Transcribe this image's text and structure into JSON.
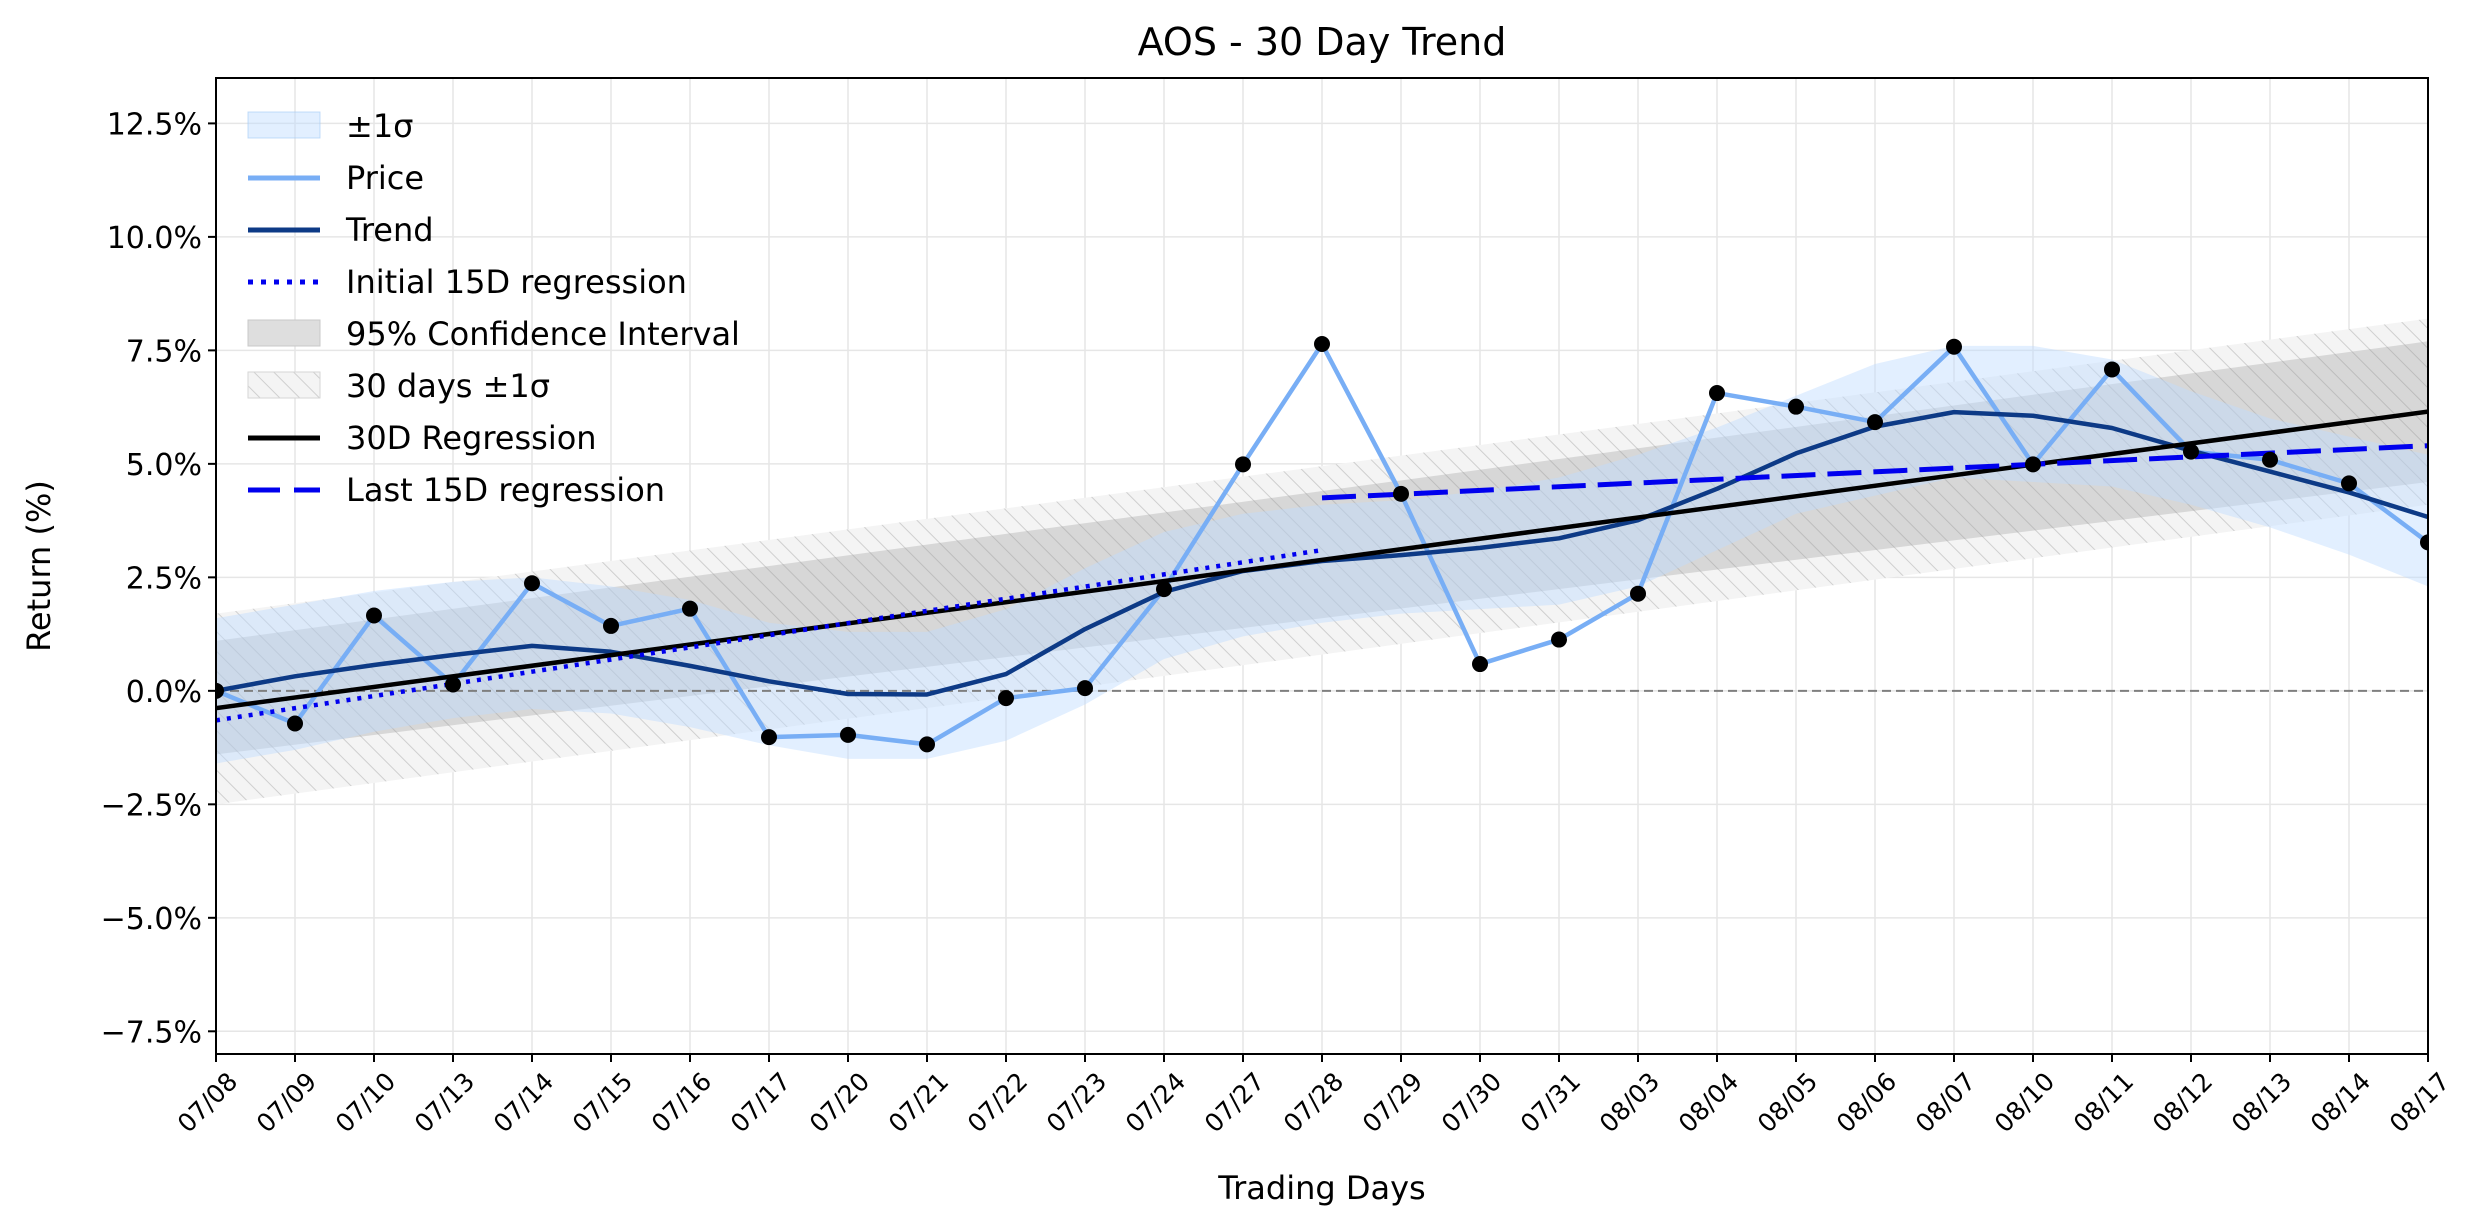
{
  "chart_data": {
    "type": "line",
    "title": "AOS - 30 Day Trend",
    "xlabel": "Trading Days",
    "ylabel": "Return (%)",
    "ylim": [
      -8.0,
      13.5
    ],
    "yticks": [
      -7.5,
      -5.0,
      -2.5,
      0.0,
      2.5,
      5.0,
      7.5,
      10.0,
      12.5
    ],
    "ytick_labels": [
      "−7.5%",
      "−5.0%",
      "−2.5%",
      "0.0%",
      "2.5%",
      "5.0%",
      "7.5%",
      "10.0%",
      "12.5%"
    ],
    "grid": true,
    "legend_position": "upper-left",
    "categories": [
      "07/08",
      "07/09",
      "07/10",
      "07/13",
      "07/14",
      "07/15",
      "07/16",
      "07/17",
      "07/20",
      "07/21",
      "07/22",
      "07/23",
      "07/24",
      "07/27",
      "07/28",
      "07/29",
      "07/30",
      "07/31",
      "08/03",
      "08/04",
      "08/05",
      "08/06",
      "08/07",
      "08/10",
      "08/11",
      "08/12",
      "08/13",
      "08/14",
      "08/17"
    ],
    "series": [
      {
        "name": "Price",
        "color": "#78aef5",
        "values": [
          0.0,
          -0.72,
          1.66,
          0.14,
          2.37,
          1.43,
          1.81,
          -1.02,
          -0.97,
          -1.18,
          -0.16,
          0.06,
          2.24,
          4.99,
          7.64,
          4.34,
          0.59,
          1.13,
          2.14,
          6.56,
          6.26,
          5.92,
          7.58,
          4.99,
          7.08,
          5.27,
          5.09,
          4.57,
          3.27
        ]
      },
      {
        "name": "Trend",
        "color": "#0d3a86",
        "values": [
          0.0,
          0.32,
          0.57,
          0.79,
          0.99,
          0.86,
          0.55,
          0.21,
          -0.07,
          -0.08,
          0.37,
          1.36,
          2.18,
          2.64,
          2.86,
          2.99,
          3.15,
          3.36,
          3.76,
          4.45,
          5.23,
          5.82,
          6.14,
          6.06,
          5.79,
          5.29,
          4.83,
          4.37,
          3.83
        ]
      },
      {
        "name": "±1σ",
        "color": "#ddeeff",
        "lower": [
          -1.6,
          -1.3,
          -0.9,
          -0.6,
          -0.4,
          -0.5,
          -0.8,
          -1.2,
          -1.5,
          -1.5,
          -1.1,
          -0.3,
          0.7,
          1.2,
          1.5,
          1.7,
          1.8,
          1.9,
          2.3,
          3.1,
          3.9,
          4.3,
          4.7,
          4.6,
          4.5,
          4.1,
          3.6,
          3.0,
          2.3
        ],
        "upper": [
          1.6,
          1.9,
          2.2,
          2.4,
          2.5,
          2.3,
          2.0,
          1.5,
          1.3,
          1.3,
          1.8,
          2.7,
          3.5,
          3.9,
          4.1,
          4.2,
          4.4,
          4.7,
          5.2,
          5.8,
          6.5,
          7.2,
          7.6,
          7.6,
          7.3,
          6.6,
          6.0,
          5.6,
          5.2
        ]
      },
      {
        "name": "Initial 15D regression",
        "color": "#0000ee",
        "x_range": [
          "07/08",
          "07/28"
        ],
        "y_range": [
          -0.65,
          3.1
        ]
      },
      {
        "name": "95% Confidence Interval",
        "color": "#c4c4c4",
        "lower_range": [
          -1.4,
          4.6
        ],
        "upper_range": [
          1.1,
          7.7
        ]
      },
      {
        "name": "30 days ±1σ",
        "color": "#cfcfcf",
        "lower_range": [
          -2.5,
          4.1
        ],
        "upper_range": [
          1.7,
          8.2
        ]
      },
      {
        "name": "30D Regression",
        "color": "#000000",
        "x_range": [
          "07/08",
          "08/17"
        ],
        "y_range": [
          -0.38,
          6.15
        ]
      },
      {
        "name": "Last 15D regression",
        "color": "#0000ee",
        "x_range": [
          "07/28",
          "08/17"
        ],
        "y_range": [
          4.25,
          5.4
        ]
      }
    ],
    "reference_line": {
      "y": 0.0,
      "color": "#7f7f7f"
    }
  }
}
